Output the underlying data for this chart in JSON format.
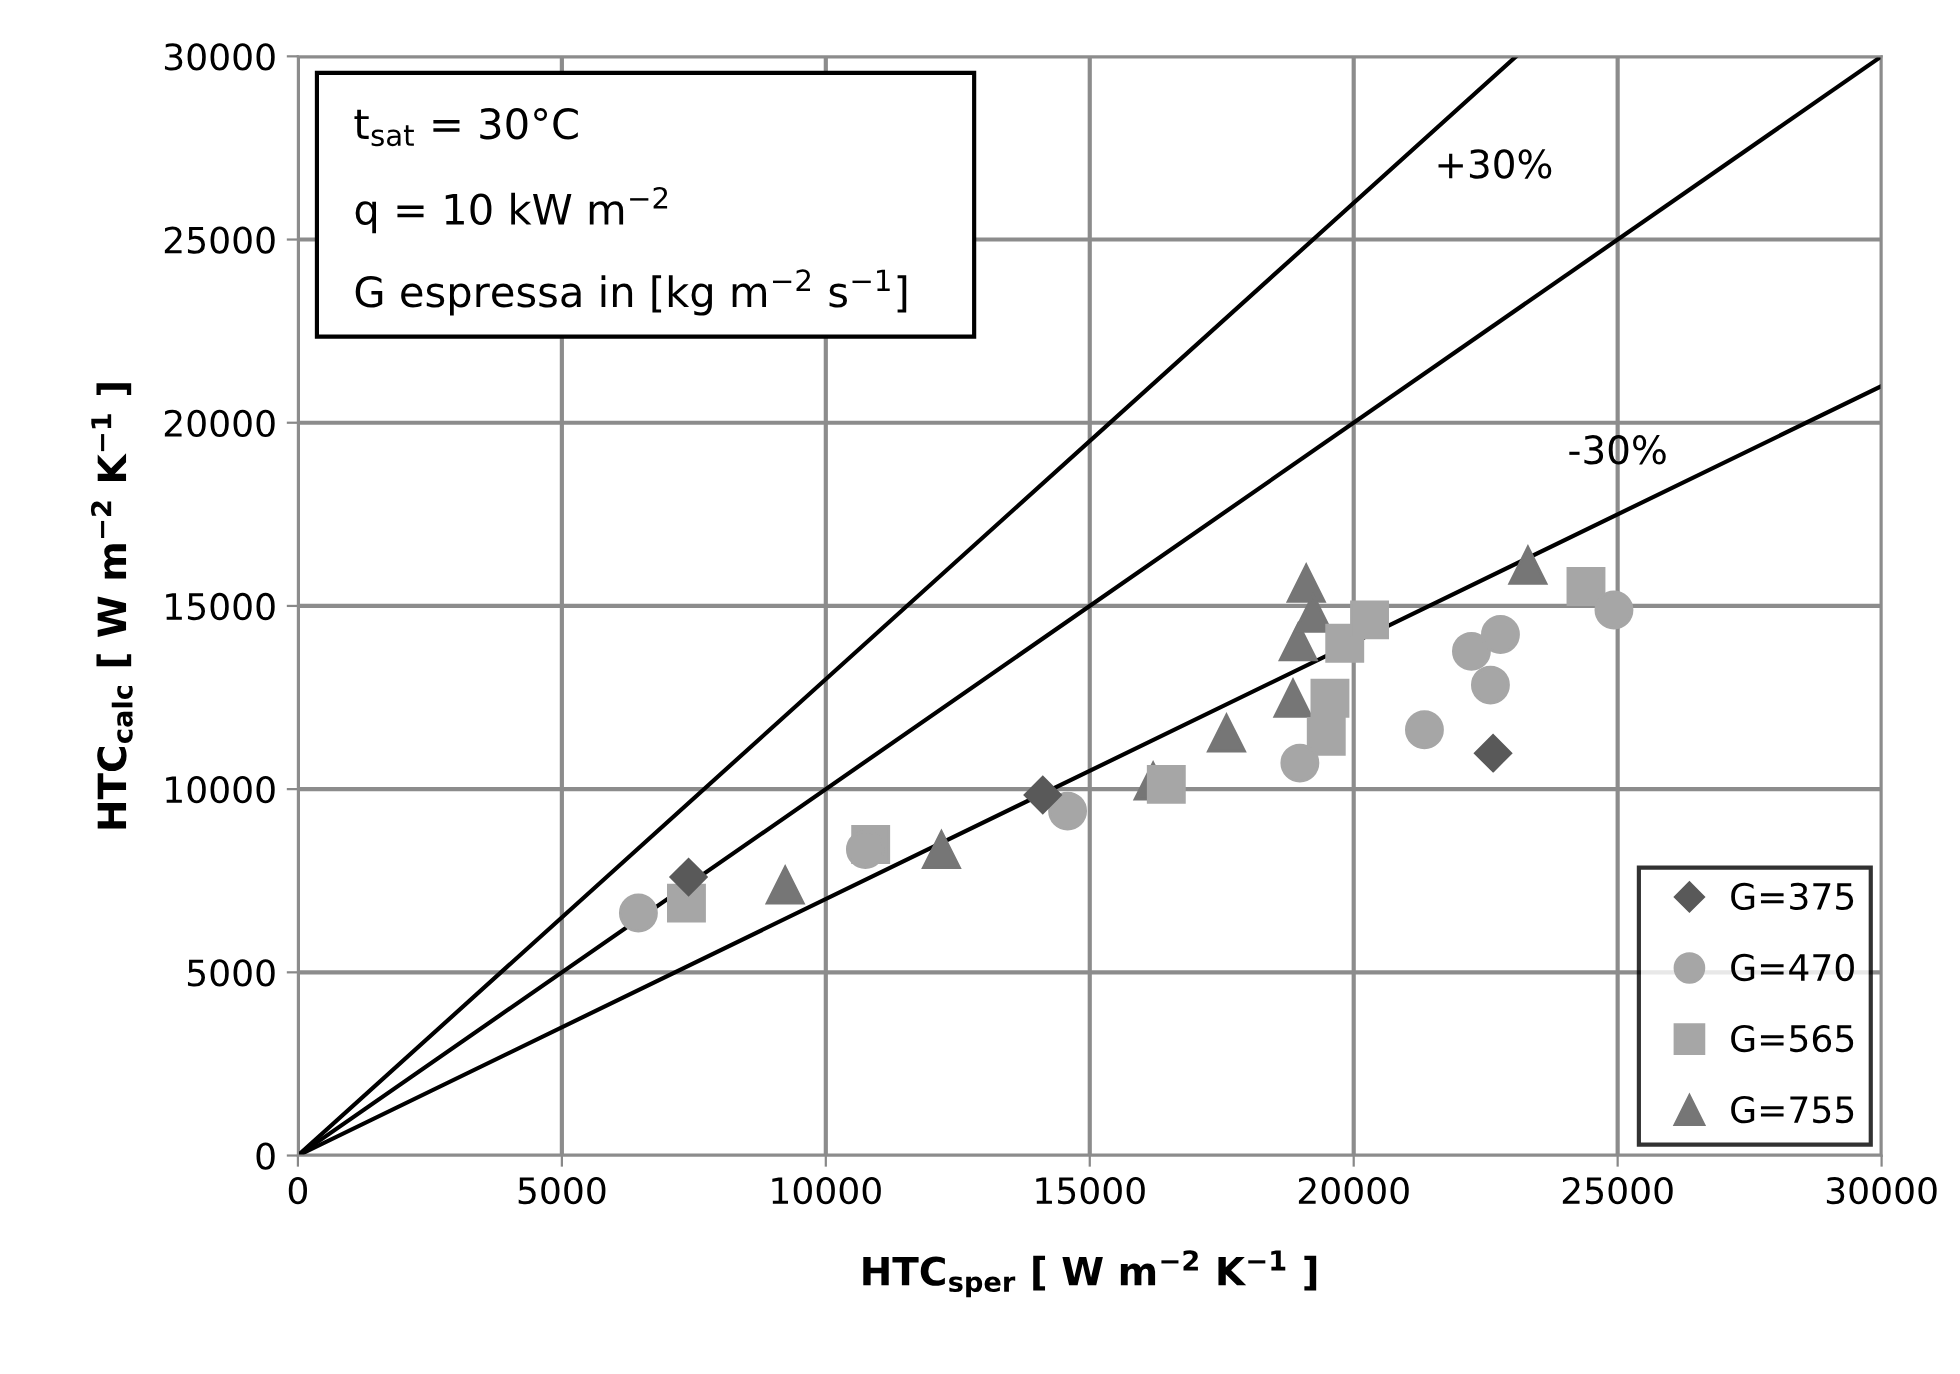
{
  "chart_data": {
    "type": "scatter",
    "xlabel": "HTC$_{sper}$ [ W m$^{−2}$ K$^{−1}$ ]",
    "ylabel": "HTC$_{calc}$ [ W m$^{−2}$ K$^{−1}$ ]",
    "xlim": [
      0,
      30000
    ],
    "ylim": [
      0,
      30000
    ],
    "xticks": [
      0,
      5000,
      10000,
      15000,
      20000,
      25000,
      30000
    ],
    "yticks": [
      0,
      5000,
      10000,
      15000,
      20000,
      25000,
      30000
    ],
    "grid": true,
    "legend": "bottom right",
    "annotations": [
      "t$_{sat}$ = 30°C",
      "q = 10 kW m$^{−2}$",
      "G espressa in [kg m$^{−2}$ s$^{−1}$]",
      {
        "text": "+30%",
        "x": 23077,
        "y": 30000
      },
      {
        "text": "-30%",
        "x": 25000,
        "y": 17500
      }
    ],
    "series": [
      {
        "type": "line",
        "color": "#000000",
        "marker": "none",
        "x": [
          0,
          23077
        ],
        "values": [
          0,
          30000
        ]
      },
      {
        "type": "line",
        "color": "#000000",
        "marker": "none",
        "x": [
          0,
          30000
        ],
        "values": [
          0,
          30000
        ]
      },
      {
        "type": "line",
        "color": "#000000",
        "marker": "none",
        "x": [
          0,
          30000
        ],
        "values": [
          0,
          21000
        ]
      },
      {
        "name": "G=375",
        "color": "#595959",
        "marker": "diamond",
        "x": [
          7400,
          14110,
          22640
        ],
        "values": [
          7600,
          9840,
          10980
        ]
      },
      {
        "name": "G=470",
        "color": "#a6a6a6",
        "marker": "circle",
        "x": [
          6450,
          10750,
          14580,
          18980,
          21340,
          22230,
          22590,
          22780,
          24930
        ],
        "values": [
          6620,
          8350,
          9400,
          10710,
          11620,
          13760,
          12840,
          14220,
          14890
        ]
      },
      {
        "name": "G=565",
        "color": "#a6a6a6",
        "marker": "square",
        "x": [
          7360,
          10850,
          16450,
          19480,
          19550,
          19830,
          20300,
          24400
        ],
        "values": [
          6890,
          8490,
          10130,
          11440,
          12480,
          13980,
          14620,
          15530
        ]
      },
      {
        "name": "G=755",
        "color": "#767676",
        "marker": "triangle",
        "x": [
          9230,
          12190,
          16200,
          17590,
          18850,
          18950,
          19100,
          19230,
          23300
        ],
        "values": [
          7380,
          8350,
          10220,
          11530,
          12480,
          14020,
          15620,
          14800,
          16110
        ]
      }
    ]
  }
}
